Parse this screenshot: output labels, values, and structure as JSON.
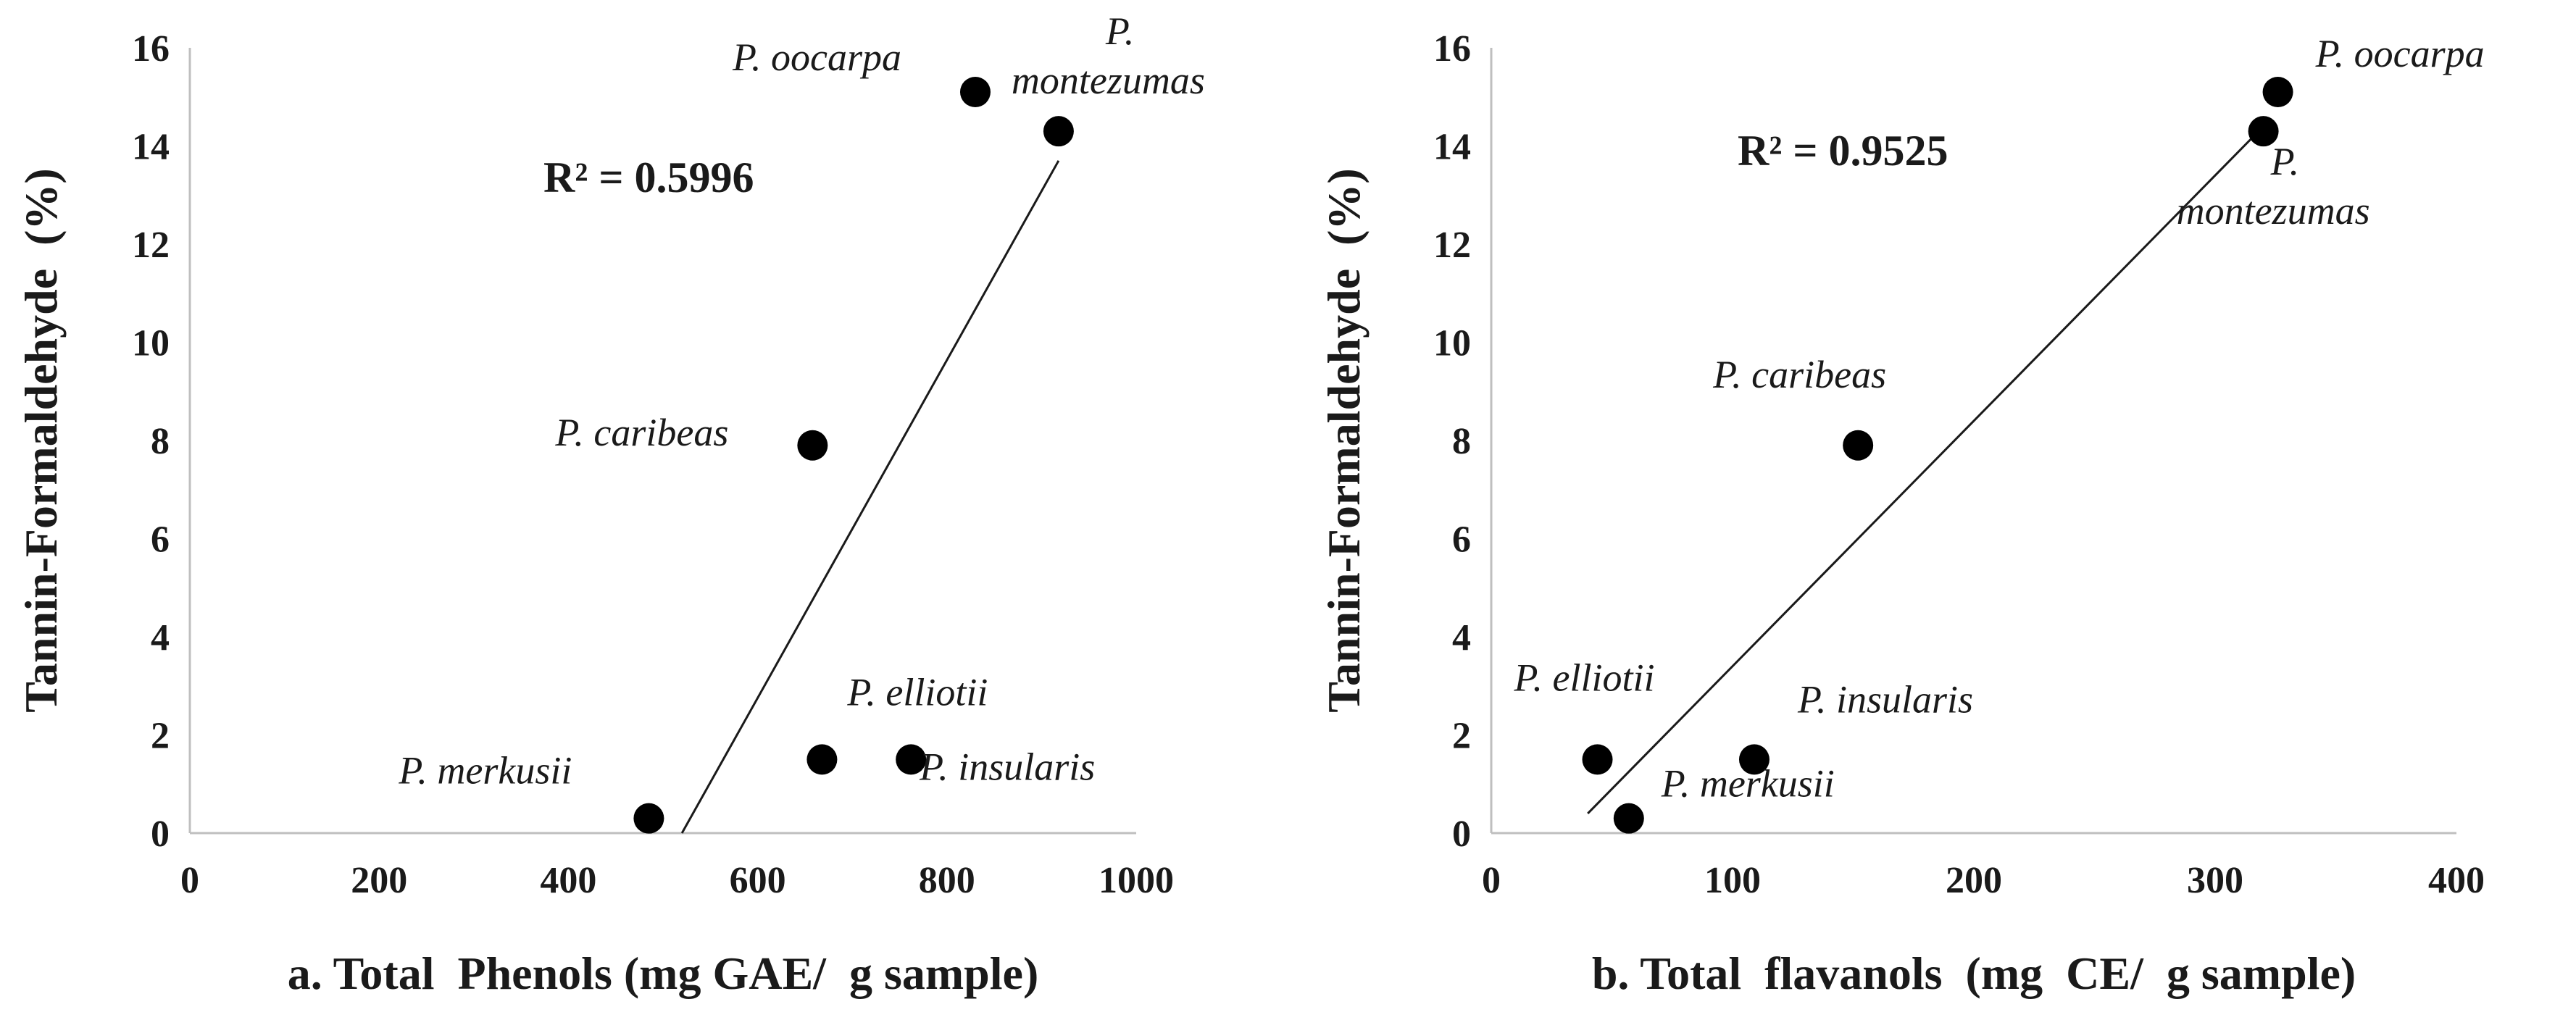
{
  "chart_data": [
    {
      "type": "scatter",
      "panel": "a",
      "xlabel": "a. Total  Phenols (mg GAE/  g sample)",
      "ylabel": "Tannin-Formaldehyde  (%)",
      "xlim": [
        0,
        1000
      ],
      "ylim": [
        0,
        16
      ],
      "x_ticks": [
        0,
        200,
        400,
        600,
        800,
        1000
      ],
      "y_ticks": [
        0,
        2,
        4,
        6,
        8,
        10,
        12,
        14,
        16
      ],
      "points": [
        {
          "label": "P. merkusii",
          "x": 485,
          "y": 0.3
        },
        {
          "label": "P. elliotii",
          "x": 668,
          "y": 1.5
        },
        {
          "label": "P. insularis",
          "x": 762,
          "y": 1.5
        },
        {
          "label": "P. caribeas",
          "x": 658,
          "y": 7.9
        },
        {
          "label": "P. oocarpa",
          "x": 830,
          "y": 15.1
        },
        {
          "label": "P. montezumas",
          "x": 918,
          "y": 14.3
        }
      ],
      "trendline": {
        "x": [
          520,
          918
        ],
        "y": [
          0,
          13.7
        ]
      },
      "annotation": "R² = 0.5996",
      "grid": false
    },
    {
      "type": "scatter",
      "panel": "b",
      "xlabel": "b. Total  flavanols  (mg  CE/  g sample)",
      "ylabel": "Tannin-Formaldehyde  (%)",
      "xlim": [
        0,
        400
      ],
      "ylim": [
        0,
        16
      ],
      "x_ticks": [
        0,
        100,
        200,
        300,
        400
      ],
      "y_ticks": [
        0,
        2,
        4,
        6,
        8,
        10,
        12,
        14,
        16
      ],
      "points": [
        {
          "label": "P. elliotii",
          "x": 44,
          "y": 1.5
        },
        {
          "label": "P. merkusii",
          "x": 57,
          "y": 0.3
        },
        {
          "label": "P. insularis",
          "x": 109,
          "y": 1.5
        },
        {
          "label": "P. caribeas",
          "x": 152,
          "y": 7.9
        },
        {
          "label": "P. oocarpa",
          "x": 326,
          "y": 15.1
        },
        {
          "label": "P. montezumas",
          "x": 320,
          "y": 14.3
        }
      ],
      "trendline": {
        "x": [
          40,
          322
        ],
        "y": [
          0.4,
          14.5
        ]
      },
      "annotation": "R² = 0.9525",
      "grid": false
    }
  ],
  "colors": {
    "marker": "#000000",
    "axis": "#bfbfbf",
    "text": "#1a1a1a"
  }
}
